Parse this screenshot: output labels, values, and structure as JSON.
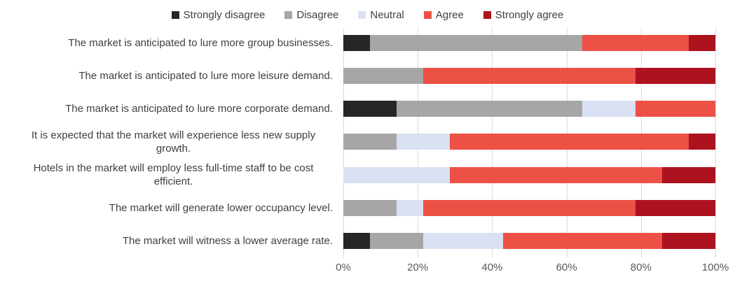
{
  "chart_data": {
    "type": "bar",
    "variant": "horizontal-stacked-100pct",
    "title": "",
    "xlabel": "",
    "ylabel": "",
    "unit": "%",
    "legend_position": "top",
    "grid": true,
    "categories": [
      "The market is anticipated to lure more group businesses.",
      "The market is anticipated to lure more leisure demand.",
      "The market is anticipated to lure more corporate demand.",
      "It is expected that the market will experience less new supply growth.",
      "Hotels in the market will employ less full-time staff to be cost efficient.",
      "The market will generate lower occupancy level.",
      "The market will witness a lower average rate."
    ],
    "series": [
      {
        "name": "Strongly disagree",
        "color": "#262626",
        "values": [
          7.14,
          0,
          14.29,
          0,
          0,
          0,
          7.14
        ]
      },
      {
        "name": "Disagree",
        "color": "#A6A6A6",
        "values": [
          57.14,
          21.43,
          50.0,
          14.29,
          0,
          14.29,
          14.29
        ]
      },
      {
        "name": "Neutral",
        "color": "#D9E1F2",
        "values": [
          0,
          0,
          14.29,
          14.29,
          28.57,
          7.14,
          21.43
        ]
      },
      {
        "name": "Agree",
        "color": "#ED5145",
        "values": [
          28.57,
          57.14,
          21.43,
          64.29,
          57.14,
          57.14,
          42.86
        ]
      },
      {
        "name": "Strongly agree",
        "color": "#AD121F",
        "values": [
          7.14,
          21.43,
          0,
          7.14,
          14.29,
          21.43,
          14.29
        ]
      }
    ],
    "x_axis": {
      "min": 0,
      "max": 100,
      "ticks": [
        "0%",
        "20%",
        "40%",
        "60%",
        "80%",
        "100%"
      ]
    }
  },
  "colors": {
    "background": "#FFFFFF",
    "gridline": "#D9D9D9",
    "category_label_text": "#3F3F3F",
    "tick_label_text": "#595959",
    "legend_text": "#404040"
  }
}
